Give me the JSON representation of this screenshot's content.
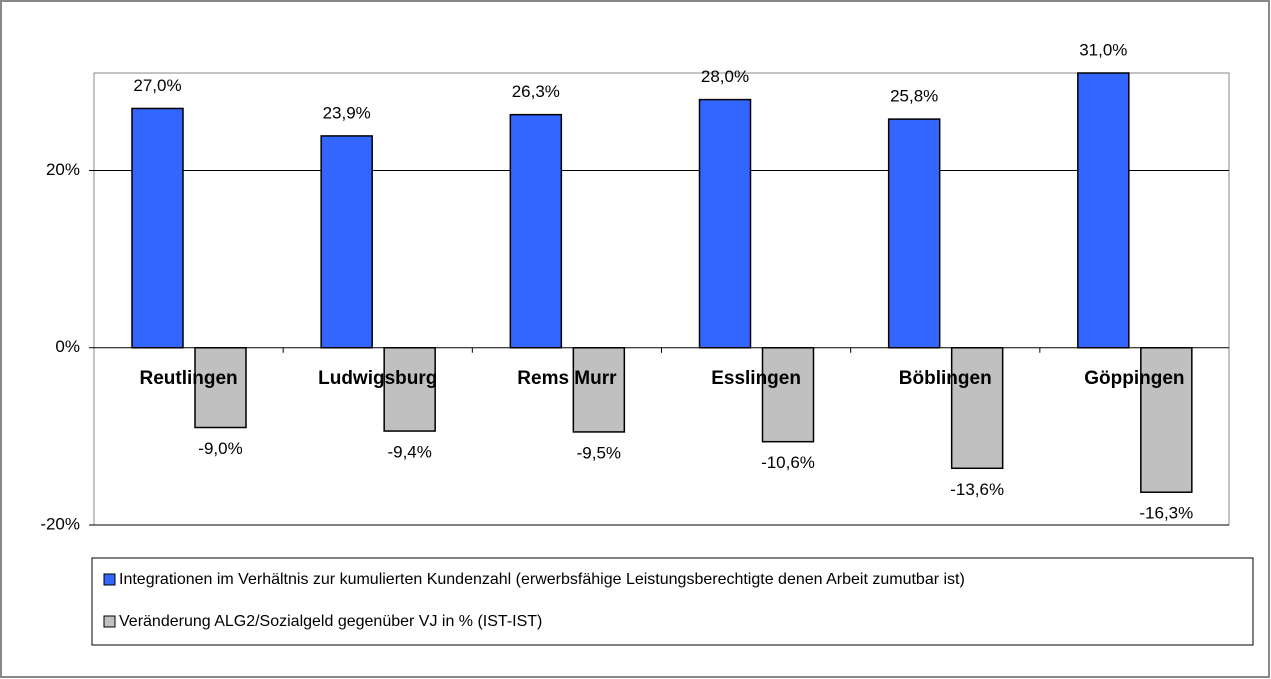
{
  "chart_data": {
    "type": "bar",
    "categories": [
      "Reutlingen",
      "Ludwigsburg",
      "Rems Murr",
      "Esslingen",
      "Böblingen",
      "Göppingen"
    ],
    "series": [
      {
        "name": "Integrationen im Verhältnis zur kumulierten Kundenzahl (erwerbsfähige Leistungsberechtigte denen Arbeit zumutbar ist)",
        "color": "#3366ff",
        "values": [
          27.0,
          23.9,
          26.3,
          28.0,
          25.8,
          31.0
        ],
        "value_labels": [
          "27,0%",
          "23,9%",
          "26,3%",
          "28,0%",
          "25,8%",
          "31,0%"
        ]
      },
      {
        "name": "Veränderung ALG2/Sozialgeld gegenüber VJ in % (IST-IST)",
        "color": "#c0c0c0",
        "values": [
          -9.0,
          -9.4,
          -9.5,
          -10.6,
          -13.6,
          -16.3
        ],
        "value_labels": [
          "-9,0%",
          "-9,4%",
          "-9,5%",
          "-10,6%",
          "-13,6%",
          "-16,3%"
        ]
      }
    ],
    "ylim": [
      -20,
      31
    ],
    "yticks": [
      {
        "value": -20,
        "label": "-20%"
      },
      {
        "value": 0,
        "label": "0%"
      },
      {
        "value": 20,
        "label": "20%"
      }
    ],
    "grid": true
  }
}
